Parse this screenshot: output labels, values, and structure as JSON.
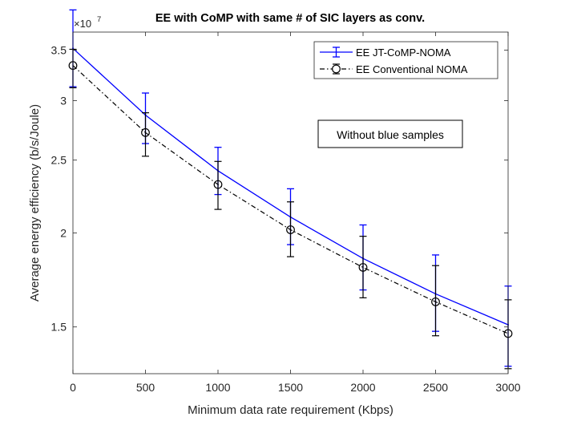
{
  "chart_data": {
    "type": "line",
    "title": "EE with CoMP with same # of SIC layers as conv.",
    "xlabel": "Minimum data rate requirement (Kbps)",
    "ylabel": "Average energy efficiency (b/s/Joule)",
    "y_exponent_label": "×10",
    "y_exponent_power": "7",
    "x": [
      0,
      500,
      1000,
      1500,
      2000,
      2500,
      3000
    ],
    "xlim": [
      0,
      3000
    ],
    "ylim": [
      1.3,
      3.7
    ],
    "y_scale": "log",
    "x_ticks": [
      0,
      500,
      1000,
      1500,
      2000,
      2500,
      3000
    ],
    "x_tick_labels": [
      "0",
      "500",
      "1000",
      "1500",
      "2000",
      "2500",
      "3000"
    ],
    "y_ticks": [
      1.5,
      2,
      2.5,
      3,
      3.5
    ],
    "y_tick_labels": [
      "1.5",
      "2",
      "2.5",
      "3",
      "3.5"
    ],
    "grid": false,
    "legend_position": "top-right",
    "annotation": "Without blue samples",
    "series": [
      {
        "name": "EE JT-CoMP-NOMA",
        "color": "#0000ff",
        "line_style": "solid",
        "marker": "none",
        "values": [
          3.52,
          2.87,
          2.42,
          2.1,
          1.85,
          1.66,
          1.51
        ],
        "err_low": [
          3.13,
          2.63,
          2.25,
          1.93,
          1.68,
          1.48,
          1.33
        ],
        "err_high": [
          3.96,
          3.07,
          2.6,
          2.29,
          2.05,
          1.87,
          1.7
        ]
      },
      {
        "name": "EE Conventional NOMA",
        "color": "#000000",
        "line_style": "dash-dot",
        "marker": "circle",
        "values": [
          3.34,
          2.72,
          2.32,
          2.02,
          1.8,
          1.62,
          1.47
        ],
        "err_low": [
          3.12,
          2.53,
          2.15,
          1.86,
          1.64,
          1.46,
          1.32
        ],
        "err_high": [
          3.51,
          2.89,
          2.49,
          2.2,
          1.98,
          1.81,
          1.63
        ]
      }
    ]
  }
}
